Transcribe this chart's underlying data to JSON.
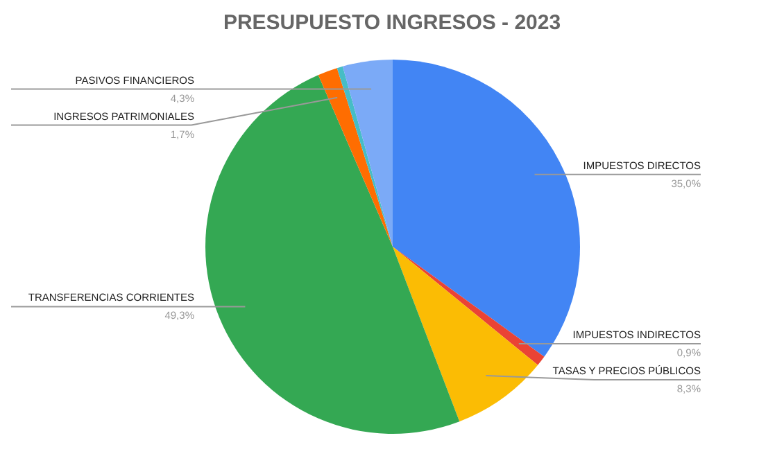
{
  "chart_data": {
    "type": "pie",
    "title": "PRESUPUESTO INGRESOS - 2023",
    "categories": [
      "IMPUESTOS DIRECTOS",
      "IMPUESTOS INDIRECTOS",
      "TASAS Y PRECIOS PÚBLICOS",
      "TRANSFERENCIAS CORRIENTES",
      "INGRESOS PATRIMONIALES",
      null,
      "PASIVOS FINANCIEROS"
    ],
    "values": [
      35.0,
      0.9,
      8.3,
      49.3,
      1.7,
      0.5,
      4.3
    ],
    "value_labels": [
      "35,0%",
      "0,9%",
      "8,3%",
      "49,3%",
      "1,7%",
      null,
      "4,3%"
    ],
    "colors": [
      "#4285f4",
      "#ea4335",
      "#fbbc04",
      "#34a853",
      "#ff6d01",
      "#46bdc6",
      "#7baaf7"
    ]
  }
}
